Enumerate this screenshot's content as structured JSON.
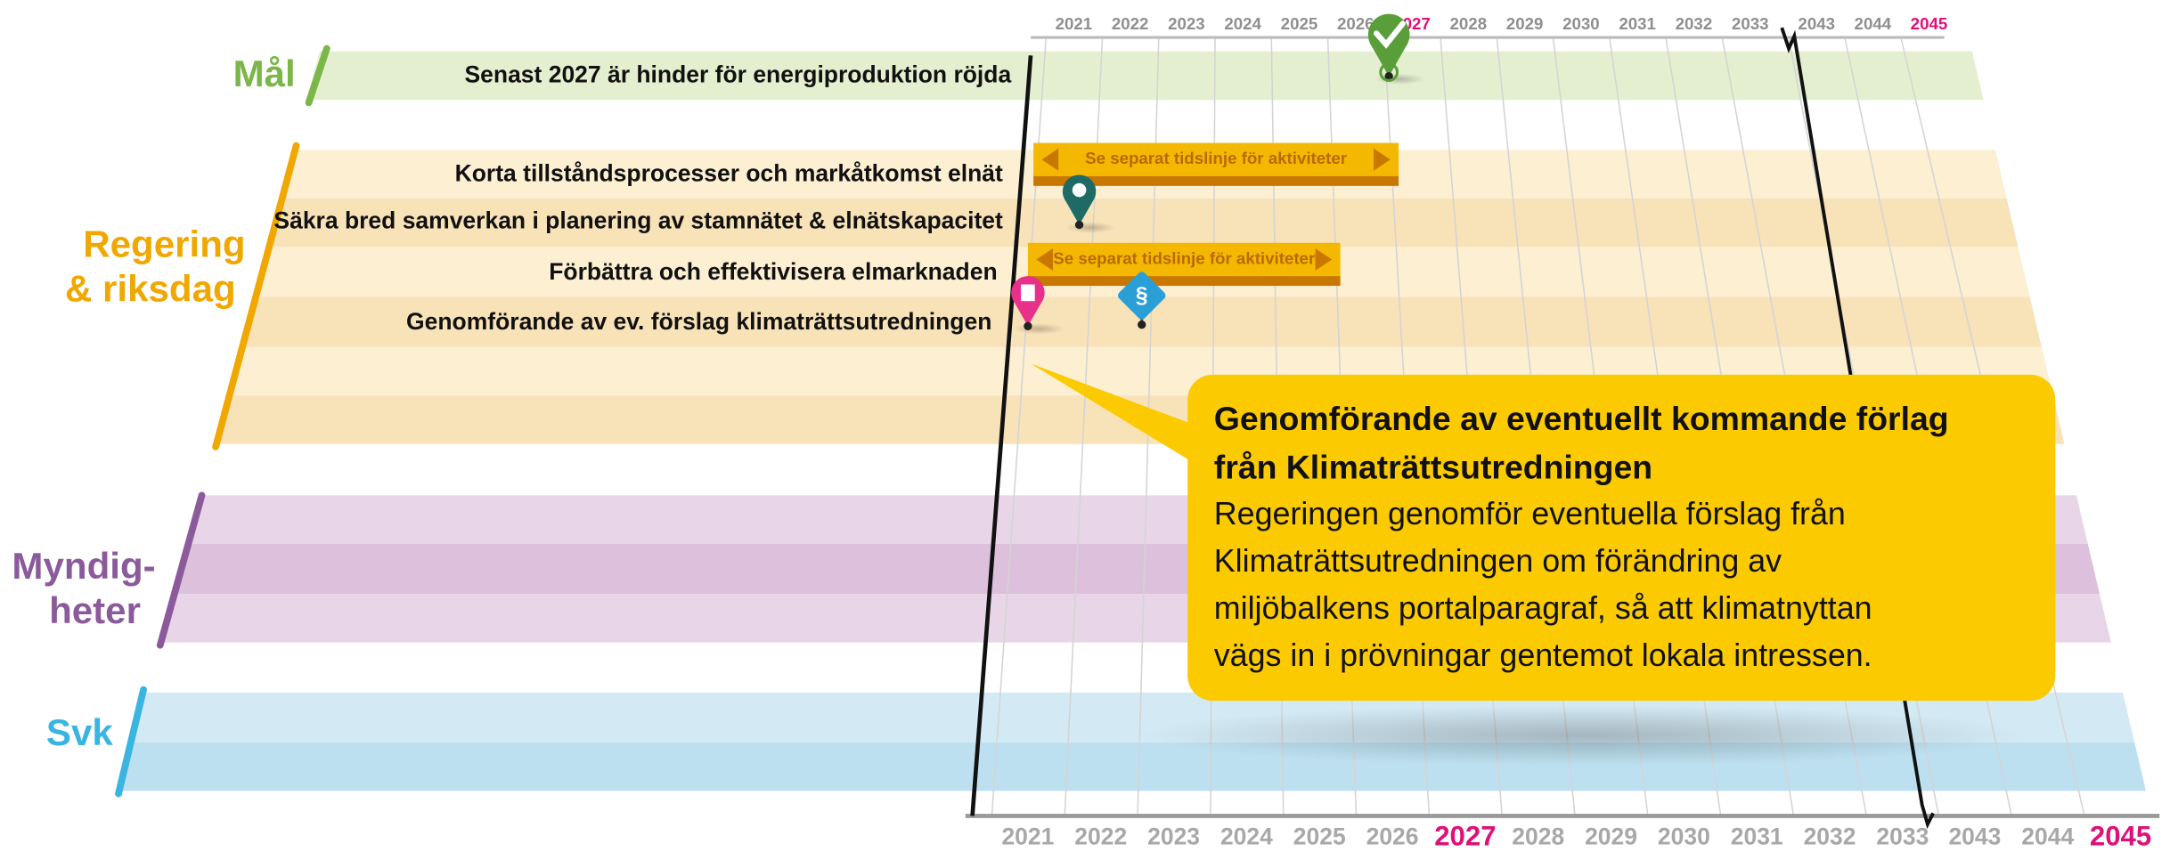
{
  "top_axis": {
    "years": [
      "2021",
      "2022",
      "2023",
      "2024",
      "2025",
      "2026",
      "2027",
      "2028",
      "2029",
      "2030",
      "2031",
      "2032",
      "2033",
      "2043",
      "2044",
      "2045"
    ]
  },
  "bottom_axis": {
    "years": [
      "2021",
      "2022",
      "2023",
      "2024",
      "2025",
      "2026",
      "2027",
      "2028",
      "2029",
      "2030",
      "2031",
      "2032",
      "2033",
      "2043",
      "2044",
      "2045"
    ]
  },
  "groups": [
    {
      "lines": [
        "Mål"
      ]
    },
    {
      "lines": [
        "Regering",
        "& riksdag"
      ]
    },
    {
      "lines": [
        "Myndig-",
        "heter"
      ]
    },
    {
      "lines": [
        "Svk"
      ]
    }
  ],
  "rows": [
    "Senast 2027 är hinder för energiproduktion röjda",
    "Korta tillståndsprocesser och markåtkomst elnät",
    "Säkra bred samverkan i planering av stamnätet & elnätskapacitet",
    "Förbättra och effektivisera elmarknaden",
    "Genomförande av ev. förslag klimaträttsutredningen"
  ],
  "bars": [
    "Se separat tidslinje för aktiviteter",
    "Se separat tidslinje för aktiviteter"
  ],
  "icon_symbol": "§",
  "callout": {
    "title_lines": [
      "Genomförande av eventuellt kommande förlag",
      "från Klimaträttsutredningen"
    ],
    "body_lines": [
      "Regeringen genomför eventuella förslag från",
      "Klimaträttsutredningen om förändring av",
      "miljöbalkens portalparagraf, så att klimatnyttan",
      "vägs in i prövningar gentemot lokala intressen."
    ]
  }
}
